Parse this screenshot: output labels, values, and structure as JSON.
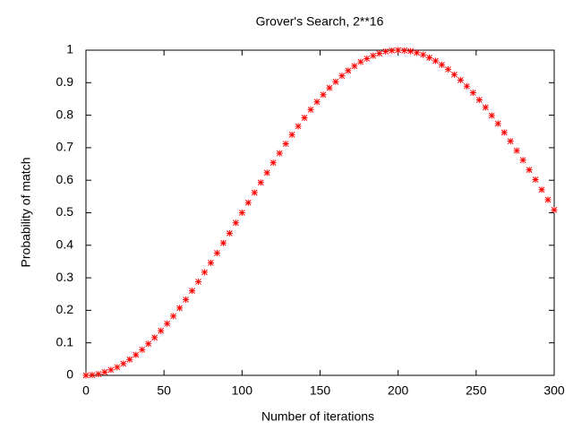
{
  "chart_data": {
    "type": "scatter",
    "title": "Grover's Search, 2**16",
    "xlabel": "Number of iterations",
    "ylabel": "Probability of match",
    "xlim": [
      0,
      300
    ],
    "ylim": [
      0,
      1
    ],
    "xticks": [
      0,
      50,
      100,
      150,
      200,
      250,
      300
    ],
    "yticks": [
      0,
      0.1,
      0.2,
      0.3,
      0.4,
      0.5,
      0.6,
      0.7,
      0.8,
      0.9,
      1
    ],
    "series": [
      {
        "color": "#ff0000",
        "x": [
          0,
          4,
          8,
          12,
          16,
          20,
          24,
          28,
          32,
          36,
          40,
          44,
          48,
          52,
          56,
          60,
          64,
          68,
          72,
          76,
          80,
          84,
          88,
          92,
          96,
          100,
          104,
          108,
          112,
          116,
          120,
          124,
          128,
          132,
          136,
          140,
          144,
          148,
          152,
          156,
          160,
          164,
          168,
          172,
          176,
          180,
          184,
          188,
          192,
          196,
          200,
          204,
          208,
          212,
          216,
          220,
          224,
          228,
          232,
          236,
          240,
          244,
          248,
          252,
          256,
          260,
          264,
          268,
          272,
          276,
          280,
          284,
          288,
          292,
          296,
          300
        ],
        "values": [
          0.0,
          0.001,
          0.004,
          0.01,
          0.017,
          0.025,
          0.036,
          0.049,
          0.063,
          0.079,
          0.097,
          0.116,
          0.137,
          0.159,
          0.182,
          0.207,
          0.233,
          0.26,
          0.288,
          0.317,
          0.346,
          0.376,
          0.407,
          0.437,
          0.469,
          0.5,
          0.531,
          0.562,
          0.593,
          0.623,
          0.654,
          0.683,
          0.712,
          0.74,
          0.766,
          0.792,
          0.817,
          0.841,
          0.863,
          0.884,
          0.903,
          0.921,
          0.937,
          0.951,
          0.964,
          0.974,
          0.983,
          0.99,
          0.996,
          0.999,
          1.0,
          0.999,
          0.997,
          0.992,
          0.986,
          0.977,
          0.967,
          0.955,
          0.941,
          0.925,
          0.908,
          0.889,
          0.869,
          0.847,
          0.824,
          0.799,
          0.774,
          0.747,
          0.72,
          0.691,
          0.662,
          0.632,
          0.602,
          0.571,
          0.54,
          0.509
        ]
      }
    ]
  }
}
